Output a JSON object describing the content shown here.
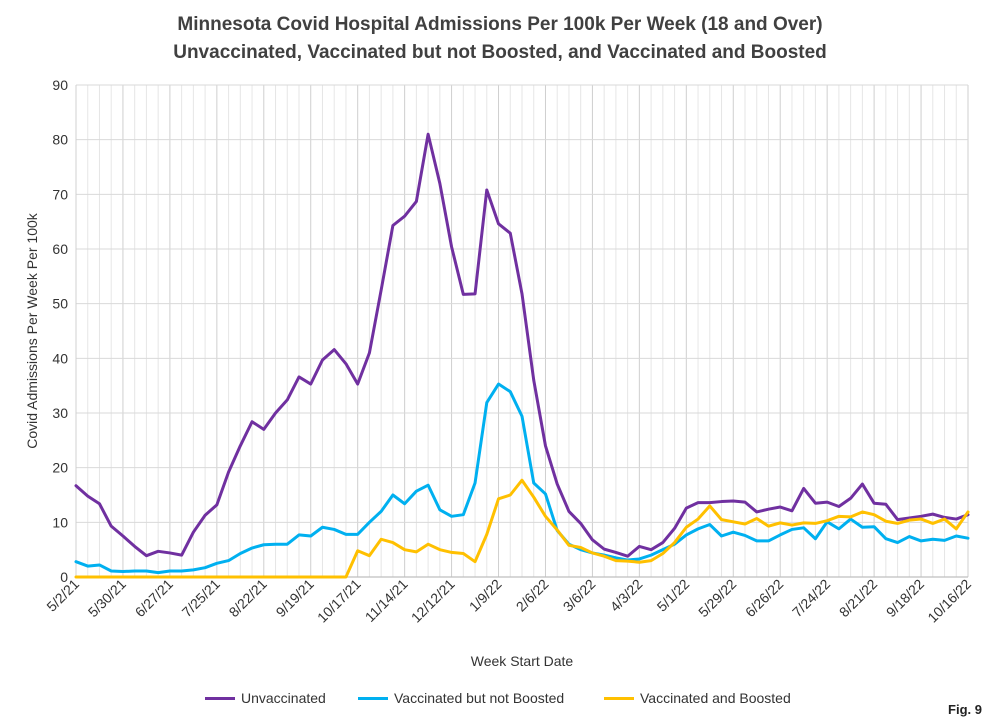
{
  "chart_data": {
    "type": "line",
    "title": "Minnesota Covid Hospital Admissions Per 100k Per Week (18 and Over)",
    "subtitle": "Unvaccinated, Vaccinated but not Boosted, and Vaccinated and Boosted",
    "xlabel": "Week Start Date",
    "ylabel": "Covid Admissions Per Week Per 100k",
    "ylim": [
      0,
      90
    ],
    "yticks": [
      0,
      10,
      20,
      30,
      40,
      50,
      60,
      70,
      80,
      90
    ],
    "grid": true,
    "legend_position": "bottom",
    "x_tick_labels": [
      "5/2/21",
      "5/30/21",
      "6/27/21",
      "7/25/21",
      "8/22/21",
      "9/19/21",
      "10/17/21",
      "11/14/21",
      "12/12/21",
      "1/9/22",
      "2/6/22",
      "3/6/22",
      "4/3/22",
      "5/1/22",
      "5/29/22",
      "6/26/22",
      "7/24/22",
      "8/21/22",
      "9/18/22",
      "10/16/22"
    ],
    "x_start": "5/2/21",
    "x_end": "10/16/22",
    "series": [
      {
        "name": "Unvaccinated",
        "color": "#7030A0",
        "values": [
          16.7,
          14.8,
          13.4,
          9.3,
          7.5,
          5.6,
          3.9,
          4.7,
          4.4,
          4.0,
          8.2,
          11.3,
          13.2,
          19.2,
          24.0,
          28.4,
          27.0,
          30.0,
          32.4,
          36.6,
          35.3,
          39.7,
          41.6,
          39.0,
          35.3,
          41.0,
          52.5,
          64.3,
          66.0,
          68.7,
          81.0,
          72.0,
          60.4,
          51.7,
          51.8,
          70.8,
          64.6,
          62.9,
          51.8,
          36.0,
          24.0,
          17.0,
          12.0,
          9.8,
          6.8,
          5.1,
          4.5,
          3.8,
          5.6,
          5.0,
          6.3,
          8.9,
          12.6,
          13.6,
          13.6,
          13.8,
          13.9,
          13.7,
          11.9,
          12.4,
          12.8,
          12.1,
          16.2,
          13.5,
          13.7,
          12.9,
          14.4,
          17.0,
          13.5,
          13.3,
          10.5,
          10.8,
          11.1,
          11.5,
          10.9,
          10.6,
          11.4
        ]
      },
      {
        "name": "Vaccinated but not Boosted",
        "color": "#00B0F0",
        "values": [
          2.8,
          2.0,
          2.2,
          1.1,
          1.0,
          1.1,
          1.1,
          0.8,
          1.1,
          1.1,
          1.3,
          1.7,
          2.5,
          3.0,
          4.3,
          5.3,
          5.9,
          6.0,
          6.0,
          7.7,
          7.5,
          9.1,
          8.7,
          7.8,
          7.8,
          10.0,
          12.0,
          15.0,
          13.4,
          15.7,
          16.8,
          12.3,
          11.1,
          11.4,
          17.2,
          31.9,
          35.3,
          33.9,
          29.4,
          17.2,
          15.2,
          8.5,
          6.0,
          5.0,
          4.4,
          4.0,
          3.5,
          3.1,
          3.3,
          4.0,
          5.0,
          6.0,
          7.7,
          8.8,
          9.6,
          7.5,
          8.2,
          7.6,
          6.6,
          6.6,
          7.7,
          8.7,
          9.0,
          7.0,
          10.1,
          8.8,
          10.6,
          9.1,
          9.2,
          7.0,
          6.3,
          7.4,
          6.6,
          6.9,
          6.7,
          7.5,
          7.1
        ]
      },
      {
        "name": "Vaccinated and Boosted",
        "color": "#FFC000",
        "values": [
          0,
          0,
          0,
          0,
          0,
          0,
          0,
          0,
          0,
          0,
          0,
          0,
          0,
          0,
          0,
          0,
          0,
          0,
          0,
          0,
          0,
          0,
          0,
          0,
          4.8,
          3.9,
          6.9,
          6.3,
          5.0,
          4.6,
          6.0,
          5.0,
          4.5,
          4.3,
          2.8,
          7.8,
          14.3,
          15.0,
          17.7,
          14.6,
          11.1,
          8.6,
          5.8,
          5.4,
          4.4,
          3.8,
          3.0,
          2.9,
          2.7,
          3.0,
          4.3,
          6.3,
          9.1,
          10.6,
          13.0,
          10.5,
          10.1,
          9.7,
          10.7,
          9.3,
          9.9,
          9.5,
          9.9,
          9.8,
          10.3,
          11.1,
          11.0,
          11.9,
          11.4,
          10.2,
          9.8,
          10.4,
          10.6,
          9.8,
          10.6,
          8.8,
          11.9
        ]
      }
    ]
  },
  "legend": [
    {
      "label": "Unvaccinated",
      "color": "#7030A0"
    },
    {
      "label": "Vaccinated but not Boosted",
      "color": "#00B0F0"
    },
    {
      "label": "Vaccinated and Boosted",
      "color": "#FFC000"
    }
  ],
  "fig_label": "Fig. 9"
}
